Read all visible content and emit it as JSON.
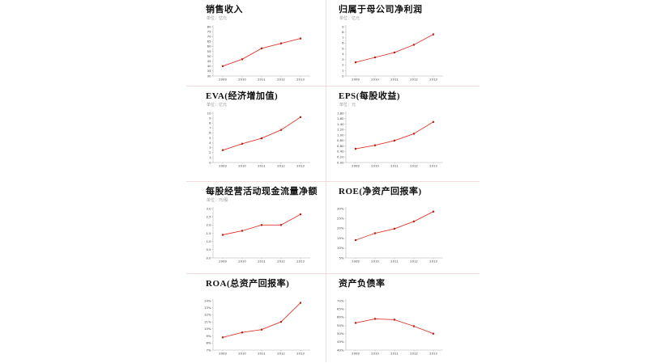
{
  "page": {
    "background": "#ffffff"
  },
  "colors": {
    "line": "#e0392e",
    "marker": "#b42318",
    "grid": "#f5dcdc",
    "axis": "#9a9a9a"
  },
  "chart_data": [
    {
      "type": "line",
      "title": "销售收入",
      "unit": "单位：亿元",
      "categories": [
        "2009",
        "2010",
        "2011",
        "2012",
        "2013"
      ],
      "values": [
        40,
        47,
        58,
        63,
        68
      ],
      "yticks": [
        "30",
        "35",
        "40",
        "45",
        "50",
        "55",
        "60",
        "65",
        "70",
        "75",
        "80"
      ],
      "ylim": [
        30,
        80
      ],
      "legend": "none",
      "grid": "off"
    },
    {
      "type": "line",
      "title": "归属于母公司净利润",
      "unit": "单位：亿元",
      "categories": [
        "2009",
        "2010",
        "2011",
        "2012",
        "2013"
      ],
      "values": [
        2.5,
        3.4,
        4.3,
        5.7,
        7.6
      ],
      "yticks": [
        "0",
        "1",
        "2",
        "3",
        "4",
        "5",
        "6",
        "7",
        "8",
        "9"
      ],
      "ylim": [
        0,
        9
      ],
      "legend": "none",
      "grid": "off"
    },
    {
      "type": "line",
      "title": "EVA(经济增加值)",
      "unit": "单位：亿元",
      "categories": [
        "2009",
        "2010",
        "2011",
        "2012",
        "2013"
      ],
      "values": [
        2.5,
        3.8,
        4.9,
        6.6,
        9.2
      ],
      "yticks": [
        "0",
        "1",
        "2",
        "3",
        "4",
        "5",
        "6",
        "7",
        "8",
        "9",
        "10"
      ],
      "ylim": [
        0,
        10
      ],
      "legend": "none",
      "grid": "off"
    },
    {
      "type": "line",
      "title": "EPS(每股收益)",
      "unit": "单位：元",
      "categories": [
        "2009",
        "2010",
        "2011",
        "2012",
        "2013"
      ],
      "values": [
        0.5,
        0.63,
        0.8,
        1.05,
        1.48
      ],
      "yticks": [
        "0.00",
        "0.20",
        "0.40",
        "0.60",
        "0.80",
        "1.00",
        "1.20",
        "1.40",
        "1.60",
        "1.80"
      ],
      "ylim": [
        0,
        1.8
      ],
      "legend": "none",
      "grid": "off"
    },
    {
      "type": "line",
      "title": "每股经营活动现金流量净额",
      "unit": "单位：元/股",
      "categories": [
        "2009",
        "2010",
        "2011",
        "2012",
        "2013"
      ],
      "values": [
        1.4,
        1.65,
        2.0,
        2.0,
        2.65
      ],
      "yticks": [
        "0.0",
        "0.5",
        "1.0",
        "1.5",
        "2.0",
        "2.5",
        "3.0"
      ],
      "ylim": [
        0,
        3
      ],
      "legend": "none",
      "grid": "off"
    },
    {
      "type": "line",
      "title": "ROE(净资产回报率)",
      "unit": "",
      "categories": [
        "2009",
        "2010",
        "2011",
        "2012",
        "2013"
      ],
      "values": [
        14,
        17.5,
        19.8,
        23.5,
        28.5
      ],
      "yticks": [
        "5%",
        "10%",
        "15%",
        "20%",
        "25%",
        "30%"
      ],
      "ylim": [
        5,
        30
      ],
      "legend": "none",
      "grid": "off"
    },
    {
      "type": "line",
      "title": "ROA(总资产回报率)",
      "unit": "",
      "categories": [
        "2009",
        "2010",
        "2011",
        "2012",
        "2013"
      ],
      "values": [
        8.8,
        9.5,
        9.9,
        11.0,
        13.7
      ],
      "yticks": [
        "7%",
        "8%",
        "9%",
        "10%",
        "11%",
        "12%",
        "13%",
        "14%"
      ],
      "ylim": [
        7,
        14
      ],
      "legend": "none",
      "grid": "off"
    },
    {
      "type": "line",
      "title": "资产负债率",
      "unit": "",
      "categories": [
        "2009",
        "2010",
        "2011",
        "2012",
        "2013"
      ],
      "values": [
        56.5,
        59,
        58.5,
        54.5,
        50
      ],
      "yticks": [
        "40%",
        "45%",
        "50%",
        "55%",
        "60%",
        "65%",
        "70%"
      ],
      "ylim": [
        40,
        70
      ],
      "legend": "none",
      "grid": "off"
    }
  ]
}
